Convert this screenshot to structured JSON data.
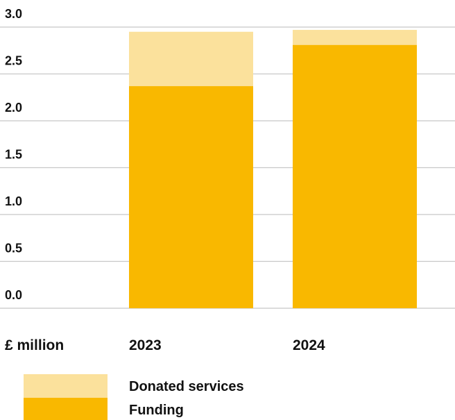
{
  "chart_data": {
    "type": "bar",
    "stacked": true,
    "categories": [
      "2023",
      "2024"
    ],
    "series": [
      {
        "name": "Funding",
        "values": [
          2.37,
          2.81
        ],
        "color": "#F9B800"
      },
      {
        "name": "Donated services",
        "values": [
          0.58,
          0.16
        ],
        "color": "#FBE19C"
      }
    ],
    "ylim": [
      0,
      3.0
    ],
    "yticks": [
      "0.0",
      "0.5",
      "1.0",
      "1.5",
      "2.0",
      "2.5",
      "3.0"
    ],
    "xlabel": "£ million",
    "ylabel": "",
    "grid": true,
    "legend": "bottom-left",
    "legend_order": [
      "Donated services",
      "Funding"
    ]
  }
}
